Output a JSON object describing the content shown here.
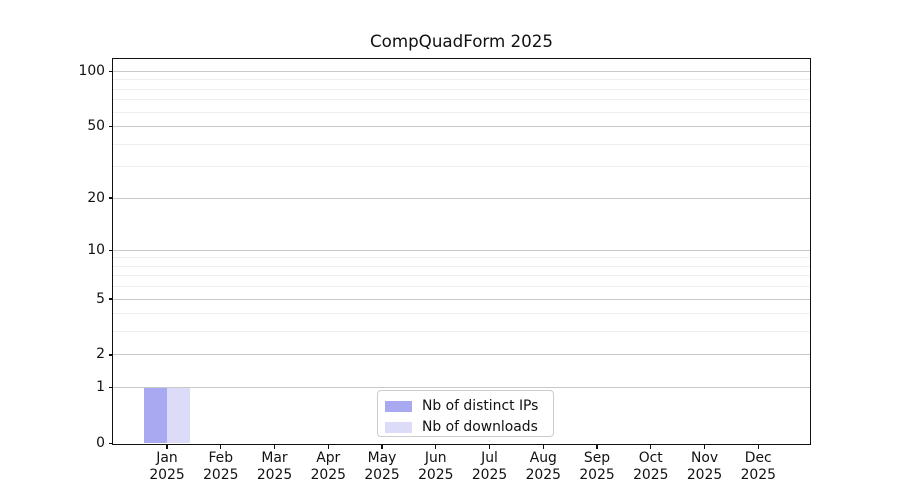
{
  "title": "CompQuadForm 2025",
  "chart_data": {
    "type": "bar",
    "title": "CompQuadForm 2025",
    "categories": [
      "Jan 2025",
      "Feb 2025",
      "Mar 2025",
      "Apr 2025",
      "May 2025",
      "Jun 2025",
      "Jul 2025",
      "Aug 2025",
      "Sep 2025",
      "Oct 2025",
      "Nov 2025",
      "Dec 2025"
    ],
    "series": [
      {
        "name": "Nb of distinct IPs",
        "color": "#a9a9f2",
        "values": [
          1,
          0,
          0,
          0,
          0,
          0,
          0,
          0,
          0,
          0,
          0,
          0
        ]
      },
      {
        "name": "Nb of downloads",
        "color": "#dcdcf8",
        "values": [
          1,
          0,
          0,
          0,
          0,
          0,
          0,
          0,
          0,
          0,
          0,
          0
        ]
      }
    ],
    "xlabel": "",
    "ylabel": "",
    "yscale": "log1p",
    "ylim": [
      0,
      117
    ],
    "y_tick_values": [
      0,
      1,
      2,
      5,
      10,
      20,
      50,
      100
    ],
    "y_minor_grid_values": [
      3,
      4,
      6,
      7,
      8,
      9,
      30,
      40,
      60,
      70,
      80,
      90
    ],
    "grid": "horizontal, major and minor",
    "legend_position": "lower center",
    "colors": {
      "background": "#ffffff",
      "axis": "#111111",
      "major_grid": "#c9c9c9",
      "minor_grid": "#efefef",
      "legend_border": "#cccccc"
    }
  }
}
